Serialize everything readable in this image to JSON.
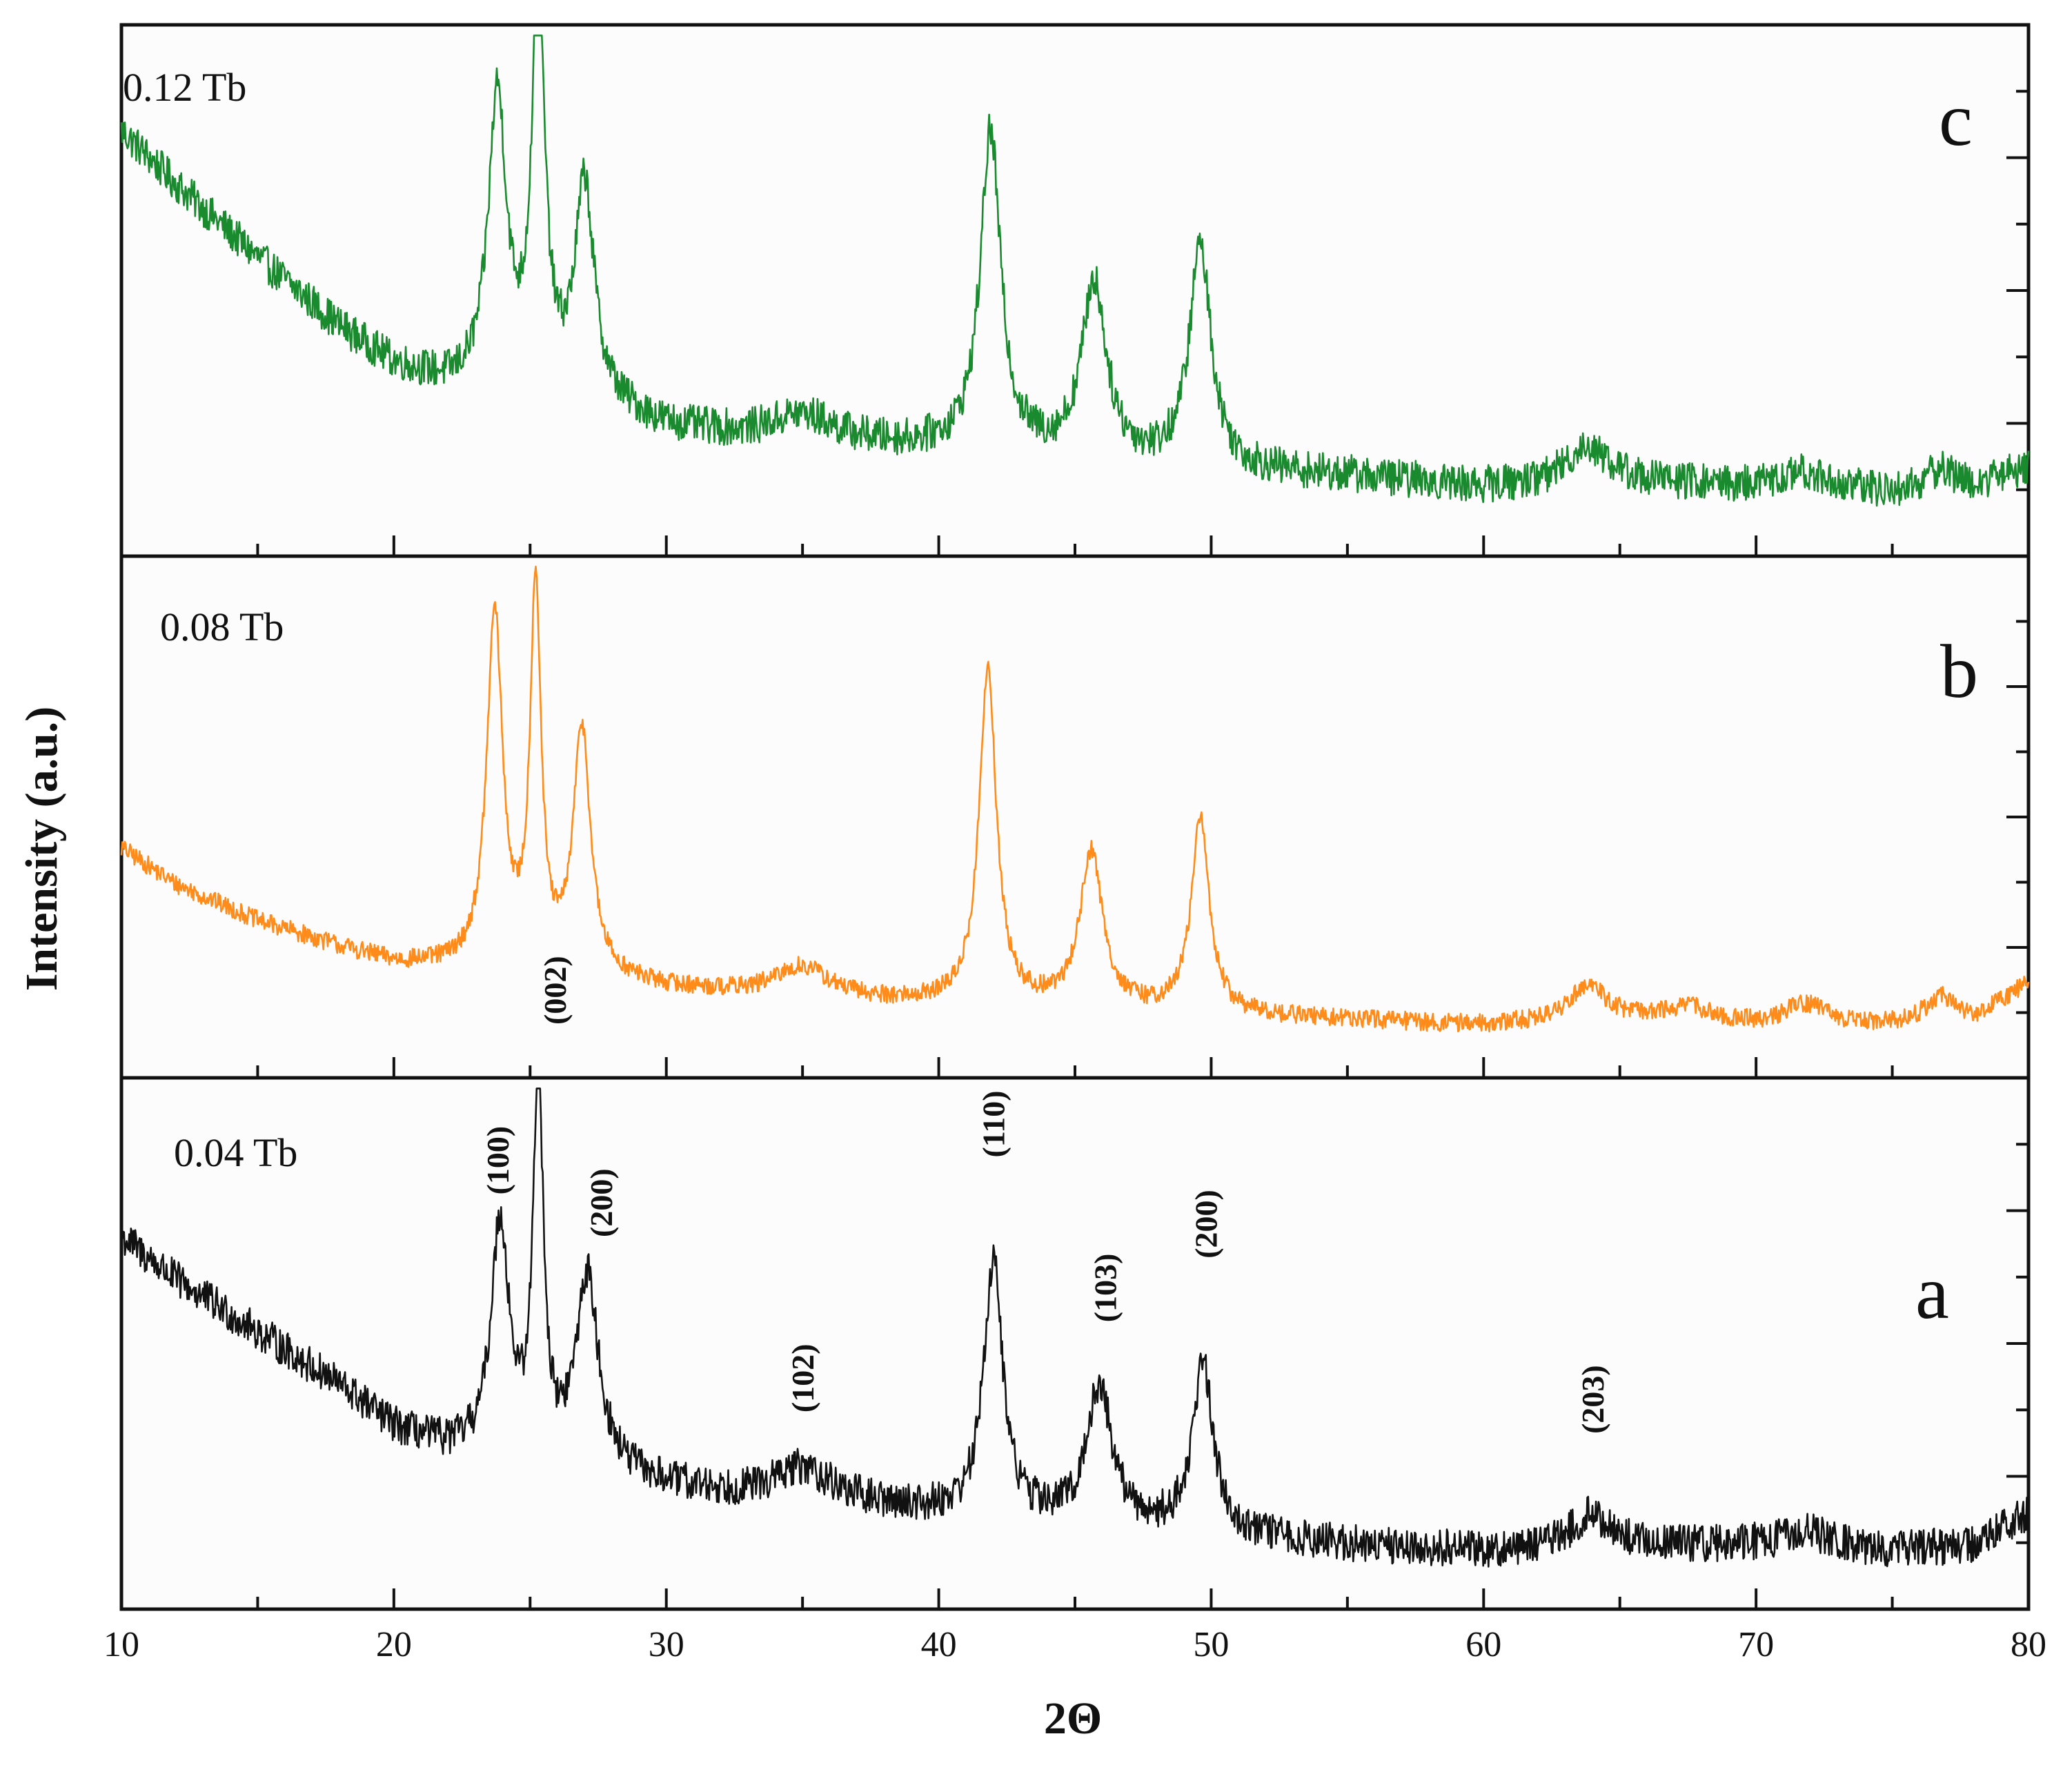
{
  "chart_data": {
    "type": "line",
    "title": "",
    "xlabel": "2Θ",
    "ylabel": "Intensity (a.u.)",
    "xlim": [
      10,
      80
    ],
    "xticks": [
      10,
      20,
      30,
      40,
      50,
      60,
      70,
      80
    ],
    "ylim": [
      0,
      1
    ],
    "panels": [
      {
        "id": "c",
        "letter": "c",
        "sample": "0.12 Tb",
        "color": "#1a8a2e",
        "baseline": [
          [
            10,
            0.8
          ],
          [
            12,
            0.7
          ],
          [
            15,
            0.56
          ],
          [
            18,
            0.43
          ],
          [
            20,
            0.36
          ],
          [
            22,
            0.32
          ],
          [
            24,
            0.31
          ],
          [
            27,
            0.29
          ],
          [
            30,
            0.24
          ],
          [
            33,
            0.22
          ],
          [
            36,
            0.21
          ],
          [
            40,
            0.2
          ],
          [
            45,
            0.18
          ],
          [
            50,
            0.16
          ],
          [
            55,
            0.15
          ],
          [
            60,
            0.13
          ],
          [
            65,
            0.14
          ],
          [
            70,
            0.13
          ],
          [
            75,
            0.12
          ],
          [
            78,
            0.13
          ],
          [
            80,
            0.17
          ]
        ],
        "peaks": [
          {
            "x": 23.8,
            "height": 0.55,
            "width": 0.4
          },
          {
            "x": 25.3,
            "height": 0.77,
            "width": 0.28
          },
          {
            "x": 27.0,
            "height": 0.4,
            "width": 0.42
          },
          {
            "x": 35.0,
            "height": 0.05,
            "width": 1.5
          },
          {
            "x": 41.9,
            "height": 0.6,
            "width": 0.45
          },
          {
            "x": 45.7,
            "height": 0.33,
            "width": 0.55
          },
          {
            "x": 49.6,
            "height": 0.42,
            "width": 0.48
          },
          {
            "x": 63.8,
            "height": 0.07,
            "width": 0.9
          },
          {
            "x": 71.8,
            "height": 0.03,
            "width": 1.0
          },
          {
            "x": 76.8,
            "height": 0.04,
            "width": 0.6
          }
        ],
        "noise": 0.035
      },
      {
        "id": "b",
        "letter": "b",
        "sample": "0.08 Tb",
        "color": "#ff8c1a",
        "baseline": [
          [
            10,
            0.44
          ],
          [
            12,
            0.37
          ],
          [
            15,
            0.3
          ],
          [
            18,
            0.25
          ],
          [
            20,
            0.22
          ],
          [
            22,
            0.21
          ],
          [
            24,
            0.2
          ],
          [
            27,
            0.19
          ],
          [
            30,
            0.17
          ],
          [
            35,
            0.15
          ],
          [
            40,
            0.14
          ],
          [
            45,
            0.13
          ],
          [
            50,
            0.12
          ],
          [
            55,
            0.11
          ],
          [
            60,
            0.1
          ],
          [
            65,
            0.11
          ],
          [
            70,
            0.1
          ],
          [
            75,
            0.1
          ],
          [
            78,
            0.11
          ],
          [
            80,
            0.18
          ]
        ],
        "peaks": [
          {
            "x": 23.7,
            "height": 0.68,
            "width": 0.35
          },
          {
            "x": 25.2,
            "height": 0.73,
            "width": 0.24
          },
          {
            "x": 26.9,
            "height": 0.47,
            "width": 0.38
          },
          {
            "x": 35.0,
            "height": 0.06,
            "width": 1.2
          },
          {
            "x": 41.8,
            "height": 0.64,
            "width": 0.38
          },
          {
            "x": 45.6,
            "height": 0.3,
            "width": 0.5
          },
          {
            "x": 49.6,
            "height": 0.37,
            "width": 0.4
          },
          {
            "x": 63.8,
            "height": 0.07,
            "width": 0.8
          },
          {
            "x": 67.5,
            "height": 0.03,
            "width": 1.0
          },
          {
            "x": 71.8,
            "height": 0.04,
            "width": 0.9
          },
          {
            "x": 76.8,
            "height": 0.05,
            "width": 0.7
          }
        ],
        "noise": 0.018
      },
      {
        "id": "a",
        "letter": "a",
        "sample": "0.04 Tb",
        "color": "#111111",
        "baseline": [
          [
            10,
            0.7
          ],
          [
            12,
            0.62
          ],
          [
            15,
            0.52
          ],
          [
            18,
            0.42
          ],
          [
            20,
            0.34
          ],
          [
            22,
            0.3
          ],
          [
            24,
            0.28
          ],
          [
            27,
            0.26
          ],
          [
            30,
            0.23
          ],
          [
            33,
            0.21
          ],
          [
            36,
            0.2
          ],
          [
            40,
            0.18
          ],
          [
            45,
            0.16
          ],
          [
            50,
            0.14
          ],
          [
            55,
            0.12
          ],
          [
            60,
            0.11
          ],
          [
            65,
            0.12
          ],
          [
            70,
            0.12
          ],
          [
            75,
            0.11
          ],
          [
            78,
            0.12
          ],
          [
            80,
            0.18
          ]
        ],
        "peaks": [
          {
            "x": 23.9,
            "height": 0.44,
            "width": 0.4
          },
          {
            "x": 25.3,
            "height": 0.73,
            "width": 0.22
          },
          {
            "x": 27.1,
            "height": 0.36,
            "width": 0.5
          },
          {
            "x": 35.0,
            "height": 0.06,
            "width": 1.3
          },
          {
            "x": 42.0,
            "height": 0.48,
            "width": 0.42
          },
          {
            "x": 45.9,
            "height": 0.26,
            "width": 0.55
          },
          {
            "x": 49.7,
            "height": 0.32,
            "width": 0.45
          },
          {
            "x": 63.9,
            "height": 0.06,
            "width": 0.8
          },
          {
            "x": 71.8,
            "height": 0.03,
            "width": 1.0
          }
        ],
        "noise": 0.035,
        "annotations": [
          {
            "label": "(100)",
            "x": 23.8,
            "y": 0.78
          },
          {
            "label": "(002)",
            "x": 25.9,
            "y": 1.1
          },
          {
            "label": "(200)",
            "x": 27.6,
            "y": 0.7
          },
          {
            "label": "(102)",
            "x": 35.0,
            "y": 0.37
          },
          {
            "label": "(110)",
            "x": 42.0,
            "y": 0.85
          },
          {
            "label": "(103)",
            "x": 46.1,
            "y": 0.54
          },
          {
            "label": "(200)",
            "x": 49.8,
            "y": 0.66
          },
          {
            "label": "(203)",
            "x": 64.0,
            "y": 0.33
          }
        ]
      }
    ]
  }
}
